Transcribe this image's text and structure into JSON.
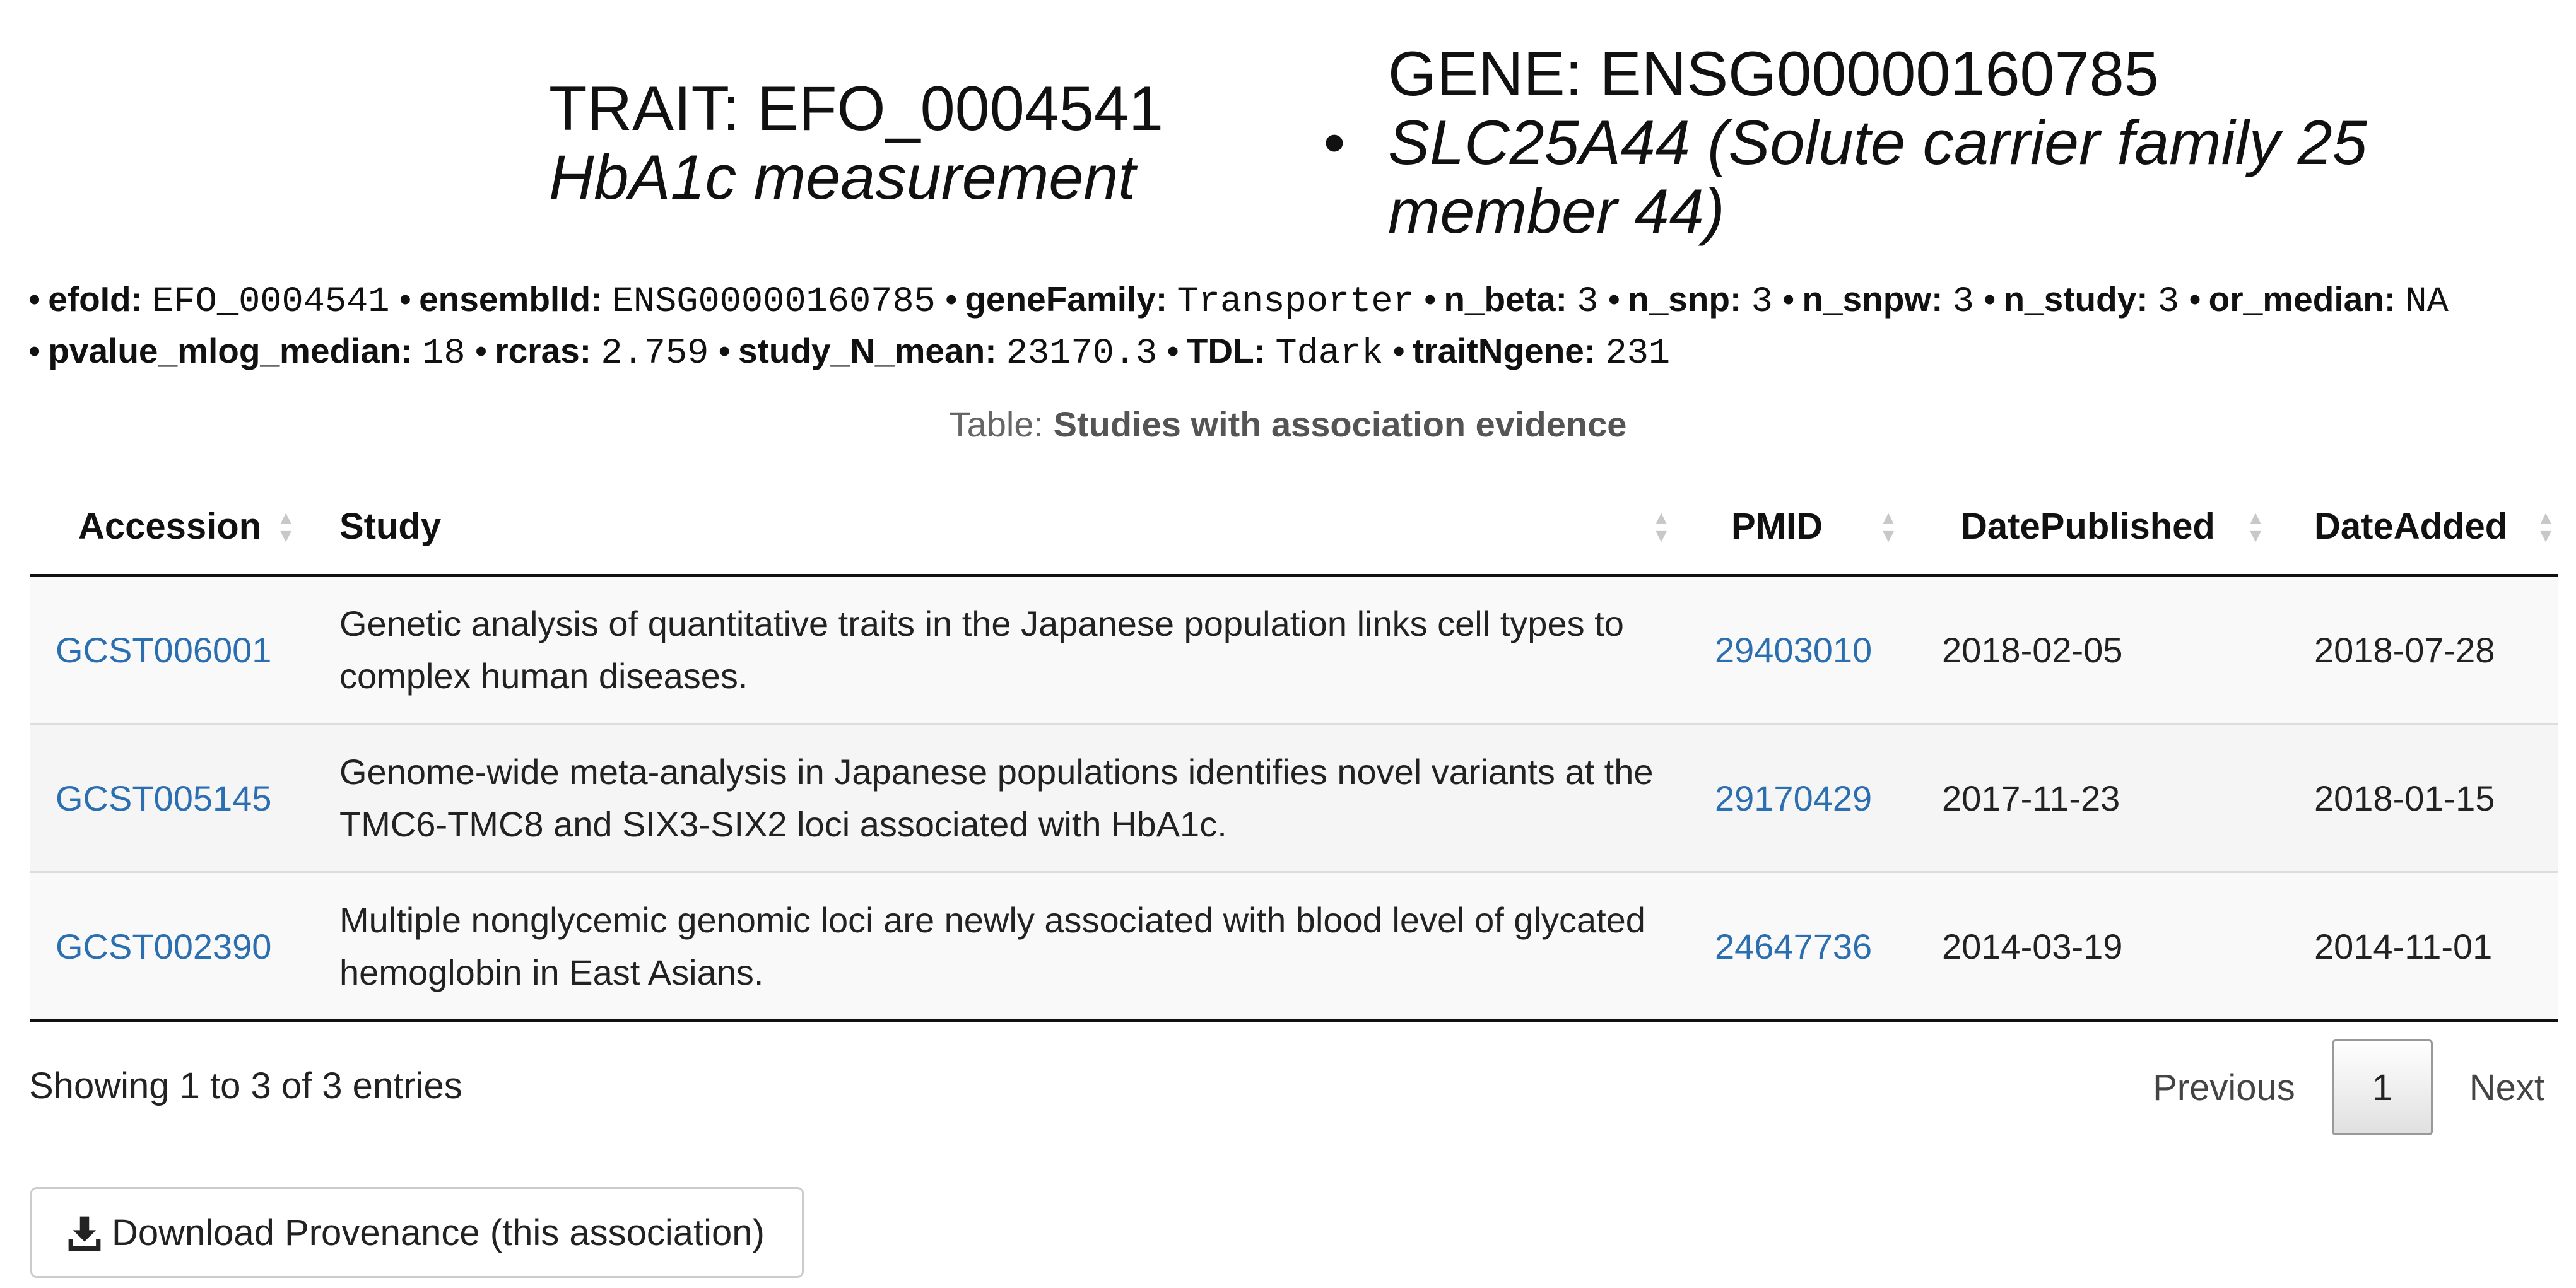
{
  "header": {
    "trait_line1": "TRAIT: EFO_0004541",
    "trait_line2": "HbA1c measurement",
    "separator": "•",
    "gene_line1": "GENE: ENSG00000160785",
    "gene_line2": "SLC25A44 (Solute carrier family 25",
    "gene_line3": "member 44)"
  },
  "properties": {
    "efoId": {
      "label": "efoId:",
      "value": "EFO_0004541"
    },
    "ensemblId": {
      "label": "ensemblId:",
      "value": "ENSG00000160785"
    },
    "geneFamily": {
      "label": "geneFamily:",
      "value": "Transporter"
    },
    "n_beta": {
      "label": "n_beta:",
      "value": "3"
    },
    "n_snp": {
      "label": "n_snp:",
      "value": "3"
    },
    "n_snpw": {
      "label": "n_snpw:",
      "value": "3"
    },
    "n_study": {
      "label": "n_study:",
      "value": "3"
    },
    "or_median": {
      "label": "or_median:",
      "value": "NA"
    },
    "pvalue_mlog_median": {
      "label": "pvalue_mlog_median:",
      "value": "18"
    },
    "rcras": {
      "label": "rcras:",
      "value": "2.759"
    },
    "study_N_mean": {
      "label": "study_N_mean:",
      "value": "23170.3"
    },
    "TDL": {
      "label": "TDL:",
      "value": "Tdark"
    },
    "traitNgene": {
      "label": "traitNgene:",
      "value": "231"
    }
  },
  "bullet": "•",
  "caption": {
    "prefix": "Table:",
    "title": "Studies with association evidence"
  },
  "table": {
    "columns": [
      "Accession",
      "Study",
      "PMID",
      "DatePublished",
      "DateAdded"
    ],
    "rows": [
      {
        "accession": "GCST006001",
        "study": "Genetic analysis of quantitative traits in the Japanese population links cell types to complex human diseases.",
        "pmid": "29403010",
        "published": "2018-02-05",
        "added": "2018-07-28"
      },
      {
        "accession": "GCST005145",
        "study": "Genome-wide meta-analysis in Japanese populations identifies novel variants at the TMC6-TMC8 and SIX3-SIX2 loci associated with HbA1c.",
        "pmid": "29170429",
        "published": "2017-11-23",
        "added": "2018-01-15"
      },
      {
        "accession": "GCST002390",
        "study": "Multiple nonglycemic genomic loci are newly associated with blood level of glycated hemoglobin in East Asians.",
        "pmid": "24647736",
        "published": "2014-03-19",
        "added": "2014-11-01"
      }
    ]
  },
  "footer": {
    "info": "Showing 1 to 3 of 3 entries",
    "previous": "Previous",
    "current_page": "1",
    "next": "Next"
  },
  "download": {
    "label": "Download Provenance (this association)",
    "icon": "download-icon"
  },
  "colors": {
    "link": "#2c6fb0"
  }
}
